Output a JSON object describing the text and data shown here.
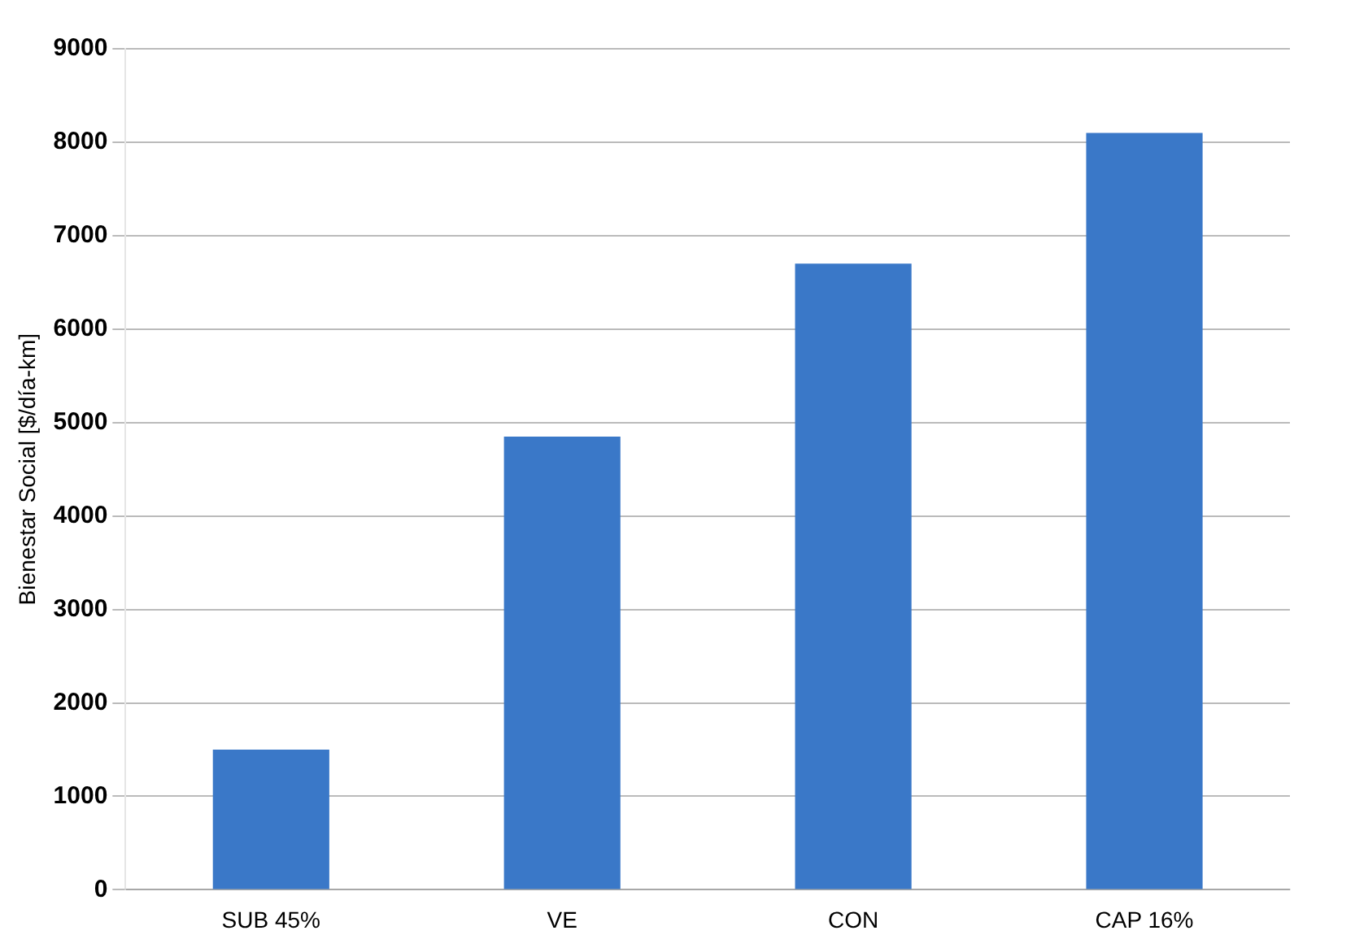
{
  "chart_data": {
    "type": "bar",
    "ylabel": "Bienestar Social [$/día-km]",
    "categories": [
      "SUB 45%",
      "VE",
      "CON",
      "CAP 16%"
    ],
    "values": [
      1500,
      4850,
      6700,
      8100
    ],
    "color": "#3a78c8",
    "ylim": [
      0,
      9000
    ],
    "yticks": [
      0,
      1000,
      2000,
      3000,
      4000,
      5000,
      6000,
      7000,
      8000,
      9000
    ],
    "grid": "y"
  }
}
